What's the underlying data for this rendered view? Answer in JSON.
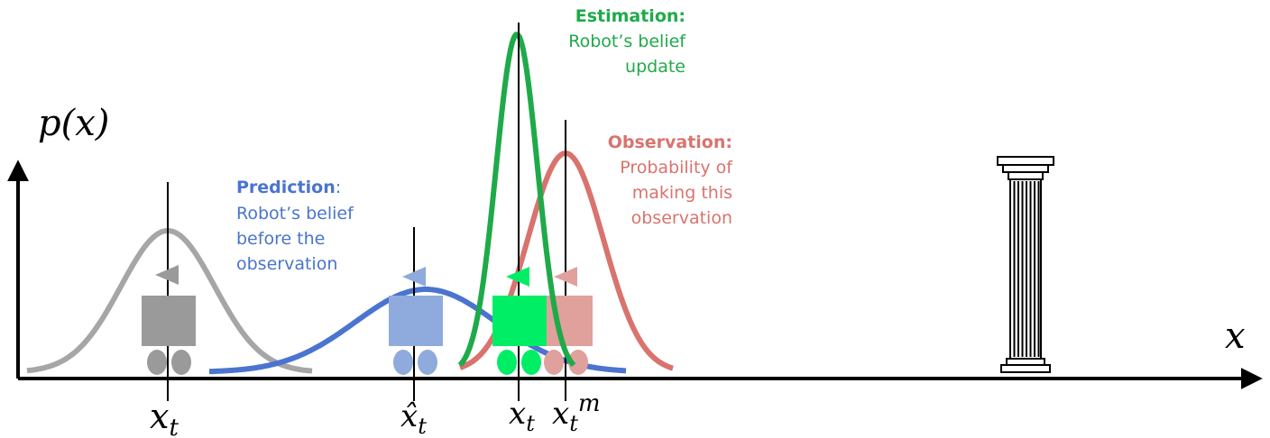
{
  "axes": {
    "y_label": "p(x)",
    "x_label": "x"
  },
  "ticks": {
    "prev": {
      "main": "x",
      "sub": "t"
    },
    "pred": {
      "main": "x̂",
      "sub": "t"
    },
    "est": {
      "main": "x",
      "sub": "t"
    },
    "obs": {
      "main": "x",
      "sub": "t",
      "sup": "m"
    }
  },
  "labels": {
    "prediction": {
      "title": "Prediction",
      "colon": ":",
      "lines": [
        "Robot’s belief",
        "before the",
        "observation"
      ]
    },
    "estimation": {
      "title": "Estimation:",
      "lines": [
        "Robot’s belief",
        "update"
      ]
    },
    "observation": {
      "title": "Observation:",
      "lines": [
        "Probability of",
        "making this",
        "observation"
      ]
    }
  },
  "colors": {
    "prev": "#a6a6a6",
    "prev_robot": "#9a9a9a",
    "prediction": "#4a74cf",
    "prediction_robot": "#8faadc",
    "estimation": "#1faa4a",
    "estimation_robot": "#00ee66",
    "observation": "#d9736e",
    "observation_robot": "#e0a09c",
    "axis": "#000000"
  },
  "icons": {
    "landmark": "pillar-icon",
    "robot": "robot-cart-icon"
  }
}
